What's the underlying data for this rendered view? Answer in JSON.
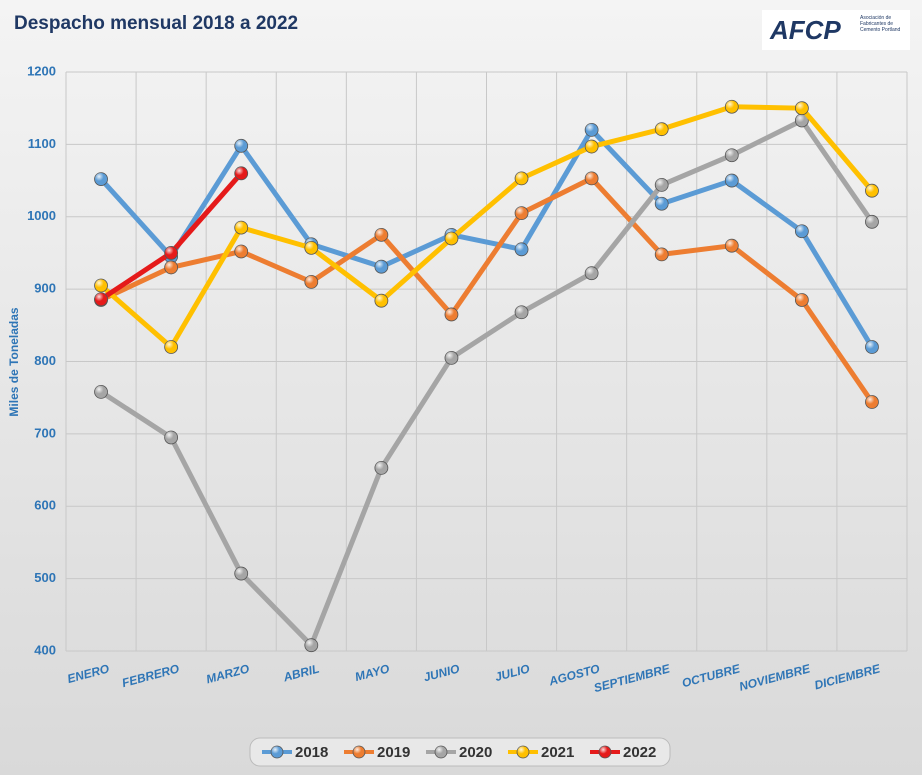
{
  "chart_data": {
    "type": "line",
    "title": "Despacho mensual 2018 a 2022",
    "logo": {
      "name": "AFCP",
      "subtitle": "Asociación de Fabricantes de Cemento Portland"
    },
    "y_label": "Miles de Toneladas",
    "categories": [
      "ENERO",
      "FEBRERO",
      "MARZO",
      "ABRIL",
      "MAYO",
      "JUNIO",
      "JULIO",
      "AGOSTO",
      "SEPTIEMBRE",
      "OCTUBRE",
      "NOVIEMBRE",
      "DICIEMBRE"
    ],
    "series": [
      {
        "name": "2018",
        "color": "#5b9bd5",
        "values": [
          1052,
          945,
          1098,
          962,
          931,
          975,
          955,
          1120,
          1018,
          1050,
          980,
          820
        ]
      },
      {
        "name": "2019",
        "color": "#ed7d31",
        "values": [
          885,
          930,
          952,
          910,
          975,
          865,
          1005,
          1053,
          948,
          960,
          885,
          744
        ]
      },
      {
        "name": "2020",
        "color": "#a5a5a5",
        "values": [
          758,
          695,
          507,
          408,
          653,
          805,
          868,
          922,
          1044,
          1085,
          1133,
          993
        ]
      },
      {
        "name": "2021",
        "color": "#ffc000",
        "values": [
          905,
          820,
          985,
          957,
          884,
          970,
          1053,
          1097,
          1121,
          1152,
          1150,
          1036
        ]
      },
      {
        "name": "2022",
        "color": "#e51a1a",
        "values": [
          886,
          950,
          1060,
          null,
          null,
          null,
          null,
          null,
          null,
          null,
          null,
          null
        ]
      }
    ],
    "ylim": [
      400,
      1200
    ],
    "yticks": [
      400,
      500,
      600,
      700,
      800,
      900,
      1000,
      1100,
      1200
    ],
    "grid": true,
    "legend": "bottom"
  }
}
